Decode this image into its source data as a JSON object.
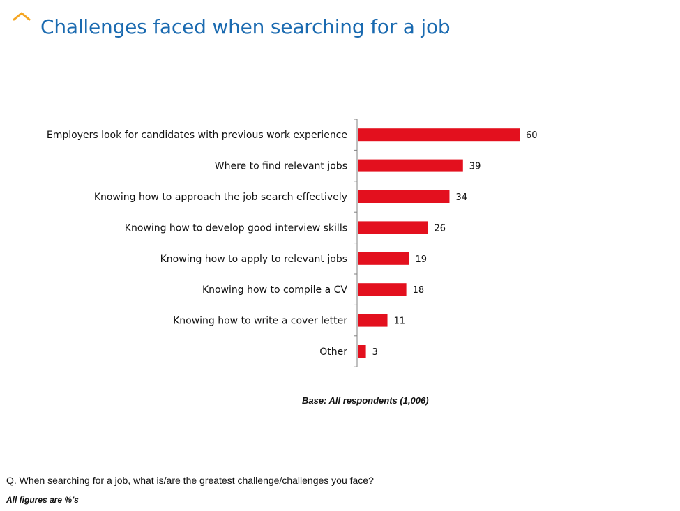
{
  "slide": {
    "title": "Challenges faced when searching for a job",
    "base_note": "Base: All respondents (1,006)",
    "question": "Q. When searching for a job, what is/are the greatest challenge/challenges you face?",
    "figures_note": "All figures are %’s",
    "accent_color": "#f5a623",
    "title_color": "#1a6ab0"
  },
  "chart_data": {
    "type": "bar",
    "orientation": "horizontal",
    "categories": [
      "Employers look for candidates with previous work experience",
      "Where to find relevant jobs",
      "Knowing how to approach the job search effectively",
      "Knowing how to develop good interview skills",
      "Knowing how to apply to relevant jobs",
      "Knowing how to compile a CV",
      "Knowing how to write a cover letter",
      "Other"
    ],
    "values": [
      60,
      39,
      34,
      26,
      19,
      18,
      11,
      3
    ],
    "data_labels": [
      "60",
      "39",
      "34",
      "26",
      "19",
      "18",
      "11",
      "3"
    ],
    "bar_color": "#e3101e",
    "xlim": [
      0,
      60
    ],
    "grid": false,
    "legend": "none"
  }
}
